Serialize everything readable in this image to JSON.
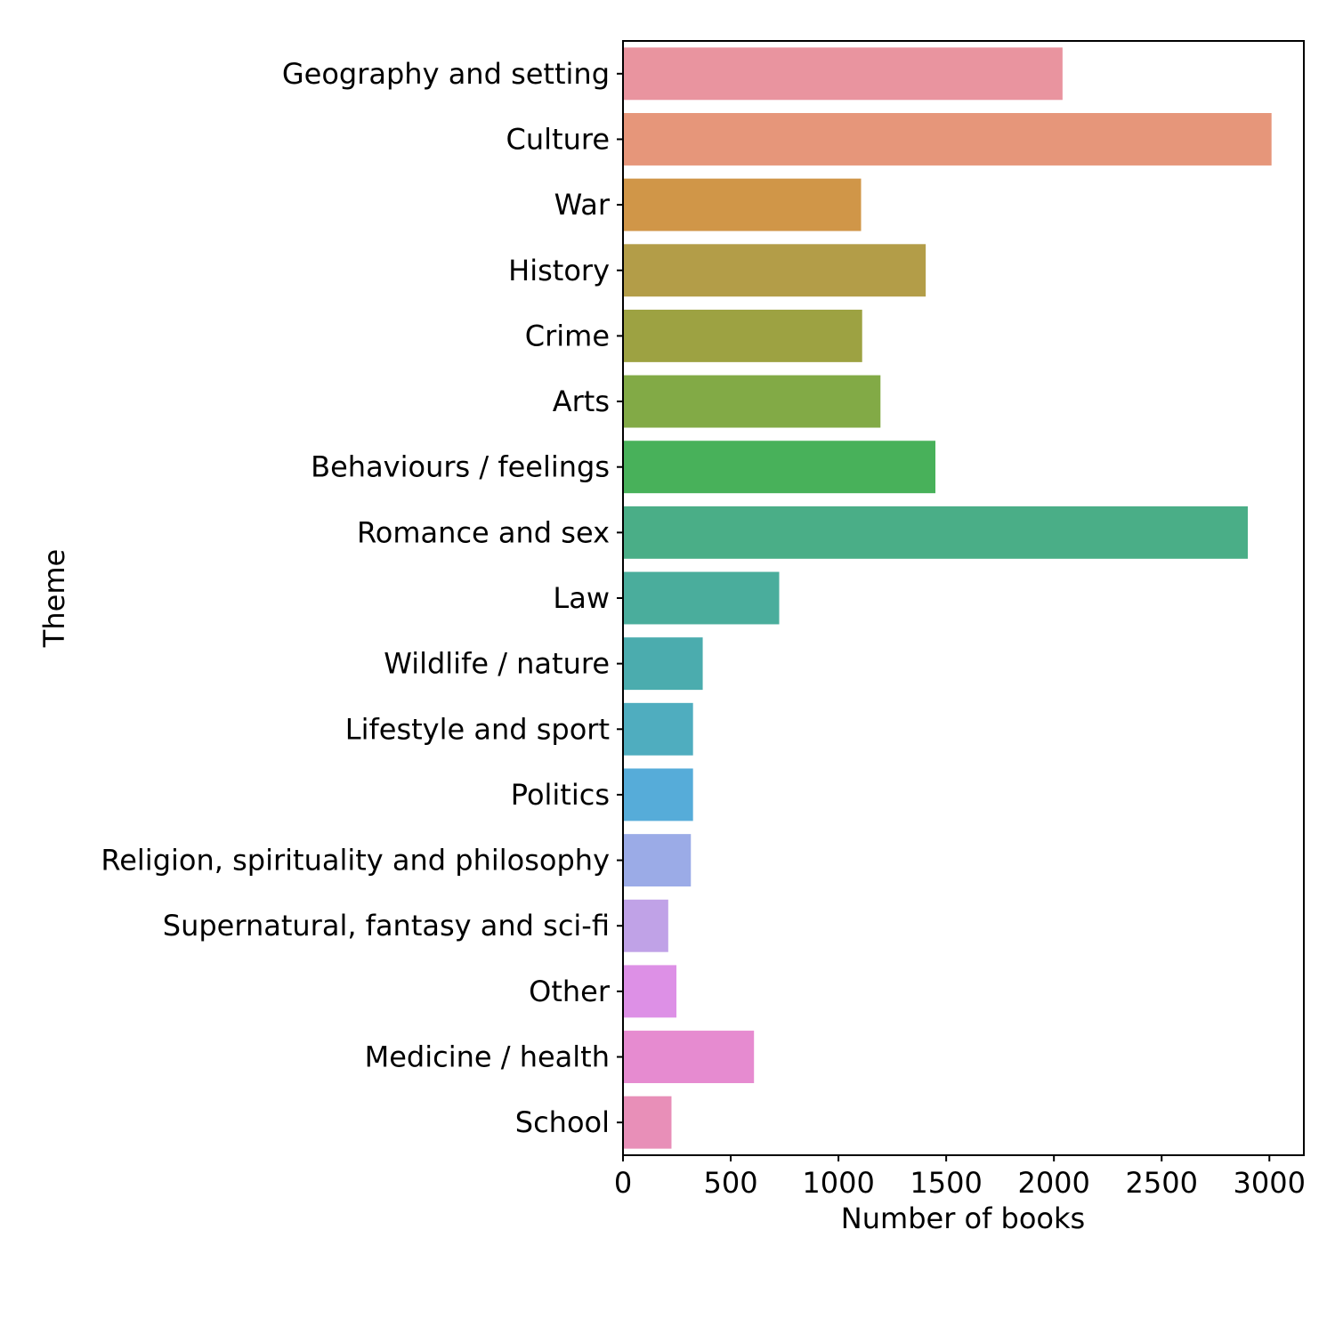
{
  "chart_data": {
    "type": "bar",
    "orientation": "horizontal",
    "xlabel": "Number of books",
    "ylabel": "Theme",
    "xlim": [
      0,
      3160
    ],
    "xticks": [
      0,
      500,
      1000,
      1500,
      2000,
      2500,
      3000
    ],
    "grid": false,
    "categories": [
      "Geography and setting",
      "Culture",
      "War",
      "History",
      "Crime",
      "Arts",
      "Behaviours / feelings",
      "Romance and sex",
      "Law",
      "Wildlife / nature",
      "Lifestyle and sport",
      "Politics",
      "Religion, spirituality and philosophy",
      "Supernatural, fantasy and sci-fi",
      "Other",
      "Medicine / health",
      "School"
    ],
    "values": [
      2040,
      3010,
      1105,
      1405,
      1110,
      1195,
      1450,
      2900,
      725,
      370,
      325,
      325,
      315,
      210,
      248,
      608,
      225
    ],
    "colors": [
      "#e9949f",
      "#e6967a",
      "#d09648",
      "#b39d48",
      "#9da242",
      "#82aa46",
      "#48b15a",
      "#4aae87",
      "#4aad9c",
      "#4bacae",
      "#4fadbf",
      "#56acd9",
      "#9babe7",
      "#c0a2e7",
      "#dd90e6",
      "#e68bd0",
      "#e88fb8"
    ]
  }
}
